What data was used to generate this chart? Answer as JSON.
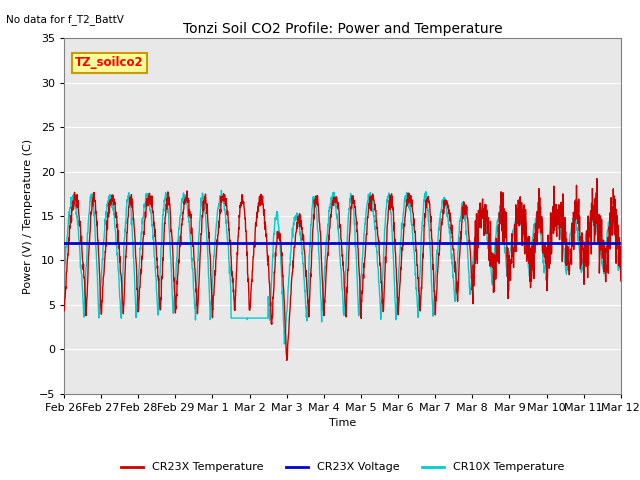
{
  "title": "Tonzi Soil CO2 Profile: Power and Temperature",
  "subtitle": "No data for f_T2_BattV",
  "ylabel": "Power (V) / Temperature (C)",
  "xlabel": "Time",
  "ylim": [
    -5,
    35
  ],
  "bg_color": "#e8e8e8",
  "legend_box_label": "TZ_soilco2",
  "legend_box_color": "#ffff99",
  "legend_box_border": "#cc9900",
  "x_tick_labels": [
    "Feb 26",
    "Feb 27",
    "Feb 28",
    "Feb 29",
    "Mar 1",
    "Mar 2",
    "Mar 3",
    "Mar 4",
    "Mar 5",
    "Mar 6",
    "Mar 7",
    "Mar 8",
    "Mar 9",
    "Mar 10",
    "Mar 11",
    "Mar 12"
  ],
  "voltage_value": 12.0,
  "cr23x_color": "#cc0000",
  "cr10x_color": "#00cccc",
  "voltage_color": "#0000cc"
}
